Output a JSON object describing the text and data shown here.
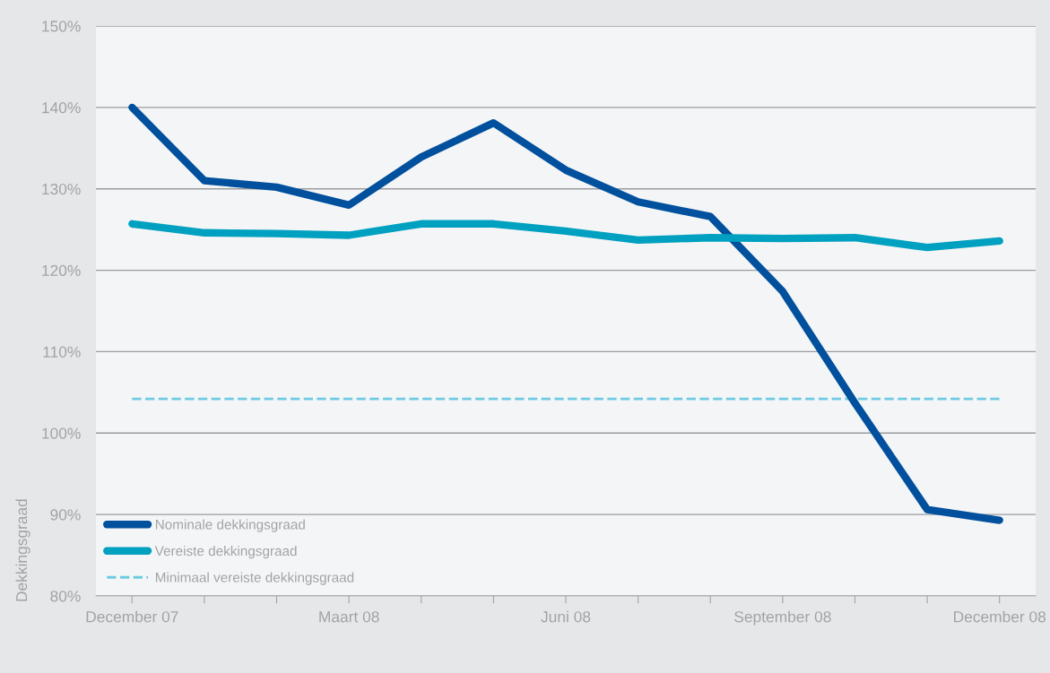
{
  "chart_data": {
    "type": "line",
    "ylabel": "Dekkingsgraad",
    "categories": [
      "December 07",
      null,
      null,
      "Maart 08",
      null,
      null,
      "Juni 08",
      null,
      null,
      "September 08",
      null,
      null,
      "December 08"
    ],
    "series": [
      {
        "name": "Nominale dekkingsgraad",
        "color": "#00509e",
        "values": [
          140.0,
          131.0,
          130.2,
          128.0,
          133.9,
          138.1,
          132.3,
          128.4,
          126.6,
          117.4,
          103.7,
          90.6,
          89.3
        ]
      },
      {
        "name": "Vereiste dekkingsgraad",
        "color": "#00a0c0",
        "values": [
          125.7,
          124.6,
          124.5,
          124.3,
          125.7,
          125.7,
          124.8,
          123.7,
          124.0,
          123.9,
          124.0,
          122.8,
          123.6
        ]
      }
    ],
    "ref_lines": [
      {
        "axis": "y",
        "value": 104.2,
        "label": "Minimaal vereiste dekkingsgraad",
        "color": "#6ecbe3",
        "line_style": "dashed"
      }
    ],
    "ylim": [
      80,
      150
    ],
    "yticks": [
      {
        "value": 80,
        "label": "80%"
      },
      {
        "value": 90,
        "label": "90%"
      },
      {
        "value": 100,
        "label": "100%"
      },
      {
        "value": 110,
        "label": "110%"
      },
      {
        "value": 120,
        "label": "120%"
      },
      {
        "value": 130,
        "label": "130%"
      },
      {
        "value": 140,
        "label": "140%"
      },
      {
        "value": 150,
        "label": "150%"
      }
    ],
    "grid": "y",
    "legend": "bottom left",
    "line_style": "solid",
    "marker": "none"
  }
}
